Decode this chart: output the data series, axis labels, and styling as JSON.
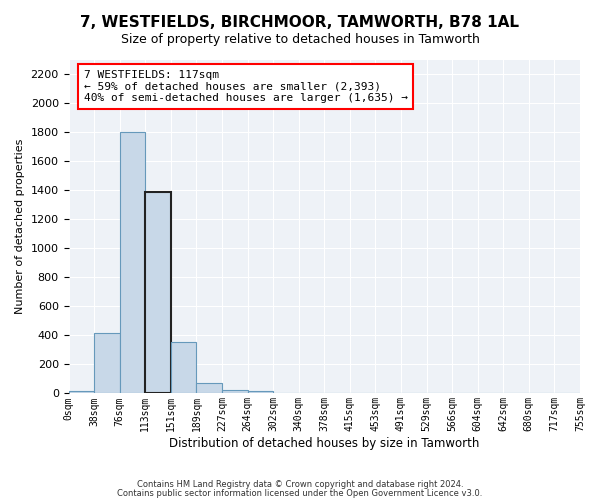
{
  "title": "7, WESTFIELDS, BIRCHMOOR, TAMWORTH, B78 1AL",
  "subtitle": "Size of property relative to detached houses in Tamworth",
  "xlabel": "Distribution of detached houses by size in Tamworth",
  "ylabel": "Number of detached properties",
  "bar_color": "#c8d8e8",
  "bar_edge_color": "#6699bb",
  "background_color": "#eef2f7",
  "ylim": [
    0,
    2300
  ],
  "yticks": [
    0,
    200,
    400,
    600,
    800,
    1000,
    1200,
    1400,
    1600,
    1800,
    2000,
    2200
  ],
  "bin_labels": [
    "0sqm",
    "38sqm",
    "76sqm",
    "113sqm",
    "151sqm",
    "189sqm",
    "227sqm",
    "264sqm",
    "302sqm",
    "340sqm",
    "378sqm",
    "415sqm",
    "453sqm",
    "491sqm",
    "529sqm",
    "566sqm",
    "604sqm",
    "642sqm",
    "680sqm",
    "717sqm",
    "755sqm"
  ],
  "bar_heights": [
    15,
    420,
    1800,
    1390,
    355,
    75,
    25,
    18,
    0,
    0,
    0,
    0,
    0,
    0,
    0,
    0,
    0,
    0,
    0,
    0
  ],
  "annotation_text": "7 WESTFIELDS: 117sqm\n← 59% of detached houses are smaller (2,393)\n40% of semi-detached houses are larger (1,635) →",
  "property_bin": 3,
  "footer_line1": "Contains HM Land Registry data © Crown copyright and database right 2024.",
  "footer_line2": "Contains public sector information licensed under the Open Government Licence v3.0."
}
